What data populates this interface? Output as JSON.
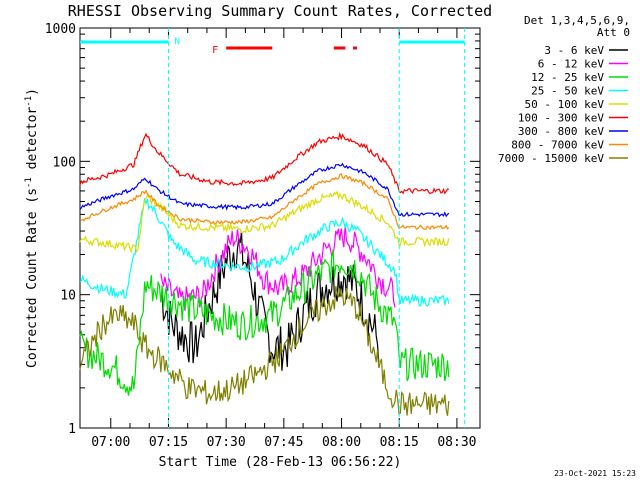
{
  "chart_data": {
    "type": "line",
    "title": "RHESSI Observing Summary Count Rates, Corrected",
    "xlabel": "Start Time (28-Feb-13 06:56:22)",
    "ylabel_parts": [
      "Corrected Count Rate (s",
      "-1",
      " detector",
      "-1",
      ")"
    ],
    "yscale": "log",
    "ylim": [
      1,
      1000
    ],
    "xlim_min": [
      -4,
      36
    ],
    "x_ticks": [
      {
        "t": 4,
        "label": "07:00"
      },
      {
        "t": 19,
        "label": "07:15"
      },
      {
        "t": 34,
        "label": "07:30"
      },
      {
        "t": 49,
        "label": "07:45"
      },
      {
        "t": 64,
        "label": "08:00"
      },
      {
        "t": 79,
        "label": "08:15"
      },
      {
        "t": 94,
        "label": "08:30"
      }
    ],
    "y_ticks": [
      {
        "v": 1,
        "label": "1"
      },
      {
        "v": 10,
        "label": "10"
      },
      {
        "v": 100,
        "label": "100"
      },
      {
        "v": 1000,
        "label": "1000"
      }
    ],
    "legend_header": [
      "Det 1,3,4,5,6,9,",
      "Att 0"
    ],
    "series": [
      {
        "name": "3 - 6 keV",
        "color": "#000000",
        "values": [
          [
            17,
            10
          ],
          [
            20,
            6
          ],
          [
            26,
            4
          ],
          [
            30,
            9
          ],
          [
            34,
            18
          ],
          [
            37,
            24
          ],
          [
            40,
            15
          ],
          [
            43,
            7
          ],
          [
            46,
            4
          ],
          [
            50,
            4
          ],
          [
            54,
            7
          ],
          [
            58,
            11
          ],
          [
            62,
            13
          ],
          [
            65,
            14
          ],
          [
            68,
            11
          ],
          [
            71,
            7
          ],
          [
            74,
            4
          ]
        ]
      },
      {
        "name": "6 - 12 keV",
        "color": "#ff00ff",
        "values": [
          [
            17,
            12
          ],
          [
            22,
            9
          ],
          [
            28,
            10
          ],
          [
            32,
            18
          ],
          [
            36,
            27
          ],
          [
            40,
            22
          ],
          [
            44,
            13
          ],
          [
            48,
            11
          ],
          [
            54,
            14
          ],
          [
            60,
            22
          ],
          [
            65,
            28
          ],
          [
            70,
            20
          ],
          [
            74,
            13
          ],
          [
            78,
            10
          ]
        ]
      },
      {
        "name": "12 - 25 keV",
        "color": "#00dd00",
        "values": [
          [
            -4,
            4
          ],
          [
            4,
            3
          ],
          [
            10,
            2
          ],
          [
            13,
            12
          ],
          [
            18,
            10
          ],
          [
            24,
            8
          ],
          [
            30,
            7
          ],
          [
            38,
            6
          ],
          [
            46,
            7
          ],
          [
            52,
            10
          ],
          [
            58,
            14
          ],
          [
            64,
            18
          ],
          [
            68,
            16
          ],
          [
            72,
            10
          ],
          [
            76,
            7
          ],
          [
            78,
            6
          ],
          [
            79,
            3
          ],
          [
            92,
            3
          ]
        ]
      },
      {
        "name": "25 - 50 keV",
        "color": "#00ffff",
        "values": [
          [
            -4,
            13
          ],
          [
            2,
            11
          ],
          [
            8,
            10
          ],
          [
            13,
            52
          ],
          [
            16,
            40
          ],
          [
            20,
            25
          ],
          [
            26,
            18
          ],
          [
            32,
            17
          ],
          [
            40,
            16
          ],
          [
            48,
            18
          ],
          [
            54,
            25
          ],
          [
            60,
            32
          ],
          [
            64,
            35
          ],
          [
            68,
            30
          ],
          [
            74,
            20
          ],
          [
            78,
            15
          ],
          [
            79,
            9
          ],
          [
            92,
            9
          ]
        ]
      },
      {
        "name": "50 - 100 keV",
        "color": "#dddd00",
        "values": [
          [
            -4,
            26
          ],
          [
            4,
            24
          ],
          [
            11,
            22
          ],
          [
            13,
            55
          ],
          [
            17,
            45
          ],
          [
            22,
            33
          ],
          [
            30,
            32
          ],
          [
            38,
            31
          ],
          [
            46,
            33
          ],
          [
            52,
            42
          ],
          [
            58,
            52
          ],
          [
            64,
            56
          ],
          [
            70,
            45
          ],
          [
            76,
            35
          ],
          [
            79,
            25
          ],
          [
            92,
            25
          ]
        ]
      },
      {
        "name": "100 - 300 keV",
        "color": "#ff0000",
        "values": [
          [
            -4,
            70
          ],
          [
            4,
            80
          ],
          [
            10,
            95
          ],
          [
            13,
            160
          ],
          [
            16,
            120
          ],
          [
            22,
            80
          ],
          [
            30,
            70
          ],
          [
            38,
            68
          ],
          [
            46,
            75
          ],
          [
            52,
            105
          ],
          [
            58,
            140
          ],
          [
            64,
            155
          ],
          [
            70,
            130
          ],
          [
            76,
            95
          ],
          [
            79,
            60
          ],
          [
            92,
            60
          ]
        ]
      },
      {
        "name": "300 - 800 keV",
        "color": "#0000ff",
        "values": [
          [
            -4,
            45
          ],
          [
            4,
            55
          ],
          [
            10,
            62
          ],
          [
            13,
            75
          ],
          [
            16,
            62
          ],
          [
            22,
            48
          ],
          [
            30,
            46
          ],
          [
            38,
            45
          ],
          [
            46,
            48
          ],
          [
            52,
            65
          ],
          [
            58,
            85
          ],
          [
            64,
            95
          ],
          [
            70,
            82
          ],
          [
            76,
            62
          ],
          [
            79,
            40
          ],
          [
            92,
            40
          ]
        ]
      },
      {
        "name": "800 - 7000 keV",
        "color": "#ff8800",
        "values": [
          [
            -4,
            36
          ],
          [
            4,
            45
          ],
          [
            10,
            52
          ],
          [
            13,
            60
          ],
          [
            16,
            48
          ],
          [
            22,
            37
          ],
          [
            30,
            35
          ],
          [
            38,
            35
          ],
          [
            46,
            38
          ],
          [
            52,
            52
          ],
          [
            58,
            68
          ],
          [
            64,
            78
          ],
          [
            70,
            68
          ],
          [
            76,
            52
          ],
          [
            79,
            32
          ],
          [
            92,
            32
          ]
        ]
      },
      {
        "name": "7000 - 15000 keV",
        "color": "#808000",
        "values": [
          [
            -4,
            3
          ],
          [
            2,
            6
          ],
          [
            6,
            7
          ],
          [
            10,
            6
          ],
          [
            13,
            4
          ],
          [
            18,
            3
          ],
          [
            24,
            2
          ],
          [
            30,
            1.8
          ],
          [
            36,
            2
          ],
          [
            42,
            2.5
          ],
          [
            48,
            3.5
          ],
          [
            54,
            6
          ],
          [
            60,
            8.5
          ],
          [
            64,
            10
          ],
          [
            68,
            8
          ],
          [
            72,
            4
          ],
          [
            76,
            2
          ],
          [
            79,
            1.5
          ],
          [
            92,
            1.5
          ]
        ]
      }
    ],
    "annotations": {
      "saa_label": "N",
      "flare_label": "F"
    }
  },
  "footer": {
    "timestamp": "23-Oct-2021 15:23"
  }
}
